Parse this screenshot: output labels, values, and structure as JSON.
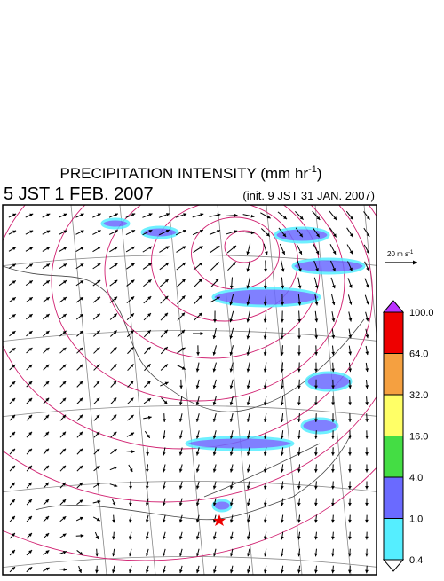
{
  "header": {
    "title": {
      "text": "PRECIPITATION INTENSITY (mm hr",
      "superscript": "-1",
      "closing": ")"
    },
    "valid_time": "5 JST 1 FEB. 2007",
    "init_time": "(init. 9 JST 31 JAN. 2007)"
  },
  "vector_scale": {
    "text": "20 m s",
    "superscript": "-1"
  },
  "colorbar": {
    "levels": [
      {
        "label": "100.0",
        "color": "#ee0000"
      },
      {
        "label": "64.0",
        "color": "#f5a040"
      },
      {
        "label": "32.0",
        "color": "#ffff66"
      },
      {
        "label": "16.0",
        "color": "#44dd44"
      },
      {
        "label": "4.0",
        "color": "#6a6aff"
      },
      {
        "label": "1.0",
        "color": "#55eeff"
      },
      {
        "label": "0.4",
        "color": "#ffffff"
      }
    ],
    "over_color": "#bb33ff"
  }
}
